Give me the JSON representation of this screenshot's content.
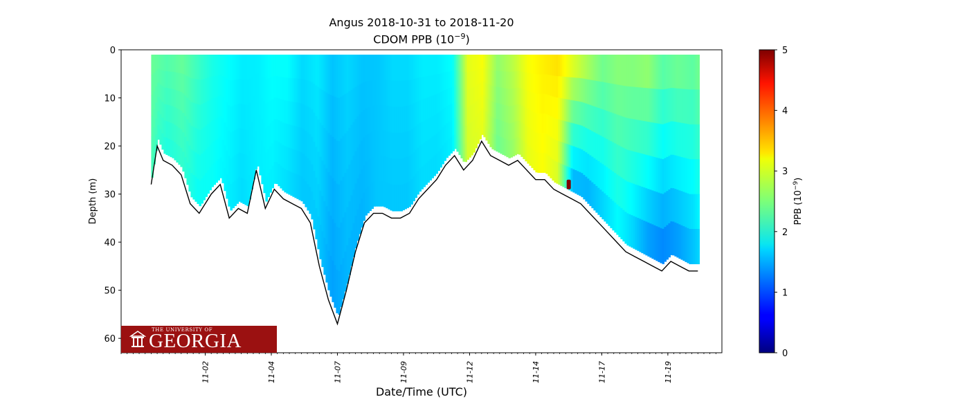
{
  "chart_data": {
    "type": "scatter",
    "title_line1": "Angus 2018-10-31 to 2018-11-20",
    "title_line2_prefix": "CDOM PPB (10",
    "title_line2_exp": "−9",
    "title_line2_suffix": ")",
    "xlabel": "Date/Time (UTC)",
    "ylabel": "Depth (m)",
    "ylim": [
      63,
      0
    ],
    "yticks": [
      0,
      10,
      20,
      30,
      40,
      50,
      60
    ],
    "xlim_days": [
      31.0,
      51.0
    ],
    "xticks": [
      {
        "label": "11-02",
        "day": 33.8
      },
      {
        "label": "11-04",
        "day": 36.0
      },
      {
        "label": "11-07",
        "day": 38.2
      },
      {
        "label": "11-09",
        "day": 40.4
      },
      {
        "label": "11-12",
        "day": 42.6
      },
      {
        "label": "11-14",
        "day": 44.8
      },
      {
        "label": "11-17",
        "day": 47.0
      },
      {
        "label": "11-19",
        "day": 49.2
      }
    ],
    "colorbar": {
      "label_prefix": "PPB (10",
      "label_exp": "−9",
      "label_suffix": ")",
      "range": [
        0,
        5
      ],
      "ticks": [
        0,
        1,
        2,
        3,
        4,
        5
      ],
      "colormap": "jet"
    },
    "bottom_profile": {
      "days": [
        32.0,
        32.2,
        32.4,
        32.7,
        33.0,
        33.3,
        33.6,
        34.0,
        34.3,
        34.6,
        34.9,
        35.2,
        35.5,
        35.8,
        36.1,
        36.4,
        36.7,
        37.0,
        37.3,
        37.6,
        37.9,
        38.2,
        38.5,
        38.8,
        39.1,
        39.4,
        39.7,
        40.0,
        40.3,
        40.6,
        40.9,
        41.2,
        41.5,
        41.8,
        42.1,
        42.4,
        42.7,
        43.0,
        43.3,
        43.6,
        43.9,
        44.2,
        44.5,
        44.8,
        45.1,
        45.4,
        45.7,
        46.0,
        46.3,
        46.6,
        46.9,
        47.2,
        47.5,
        47.8,
        48.1,
        48.4,
        48.7,
        49.0,
        49.3,
        49.6,
        49.9,
        50.2
      ],
      "depths": [
        28,
        20,
        23,
        24,
        26,
        32,
        34,
        30,
        28,
        35,
        33,
        34,
        25,
        33,
        29,
        31,
        32,
        33,
        36,
        45,
        52,
        57,
        50,
        42,
        36,
        34,
        34,
        35,
        35,
        34,
        31,
        29,
        27,
        24,
        22,
        25,
        23,
        19,
        22,
        23,
        24,
        23,
        25,
        27,
        27,
        29,
        30,
        31,
        32,
        34,
        36,
        38,
        40,
        42,
        43,
        44,
        45,
        46,
        44,
        45,
        46,
        46
      ]
    },
    "column_profile": {
      "comment_free": true,
      "days": [
        32.0,
        32.5,
        33.0,
        33.5,
        34.0,
        34.5,
        35.0,
        35.5,
        36.0,
        36.5,
        37.0,
        37.5,
        38.0,
        38.5,
        39.0,
        39.5,
        40.0,
        40.5,
        41.0,
        41.5,
        42.0,
        42.5,
        43.0,
        43.5,
        44.0,
        44.5,
        45.0,
        45.5,
        46.0,
        46.5,
        47.0,
        47.5,
        48.0,
        48.5,
        49.0,
        49.5,
        50.0,
        50.2
      ],
      "surface_value": [
        2.4,
        2.3,
        2.4,
        2.2,
        2.0,
        1.9,
        1.8,
        1.8,
        1.9,
        1.9,
        1.7,
        1.8,
        1.6,
        1.7,
        1.6,
        1.6,
        1.7,
        1.7,
        1.8,
        1.8,
        1.9,
        3.0,
        3.1,
        2.6,
        2.8,
        3.1,
        3.2,
        3.3,
        3.1,
        2.8,
        2.5,
        2.6,
        2.6,
        2.7,
        2.4,
        2.5,
        2.4,
        2.5
      ],
      "deep_value": [
        2.2,
        2.0,
        2.1,
        1.9,
        1.9,
        1.8,
        1.7,
        1.8,
        1.8,
        1.7,
        1.6,
        1.6,
        1.4,
        1.5,
        1.5,
        1.6,
        1.6,
        1.6,
        1.7,
        1.7,
        1.8,
        2.9,
        3.0,
        2.4,
        2.6,
        3.0,
        3.1,
        2.9,
        1.4,
        1.4,
        1.6,
        1.8,
        1.6,
        1.3,
        1.2,
        1.3,
        1.5,
        1.6
      ]
    },
    "red_marker": {
      "day": 45.9,
      "depth_top": 27,
      "depth_bottom": 29,
      "value": 5.0
    }
  },
  "logo": {
    "small_text": "THE UNIVERSITY OF",
    "big_text": "GEORGIA"
  }
}
